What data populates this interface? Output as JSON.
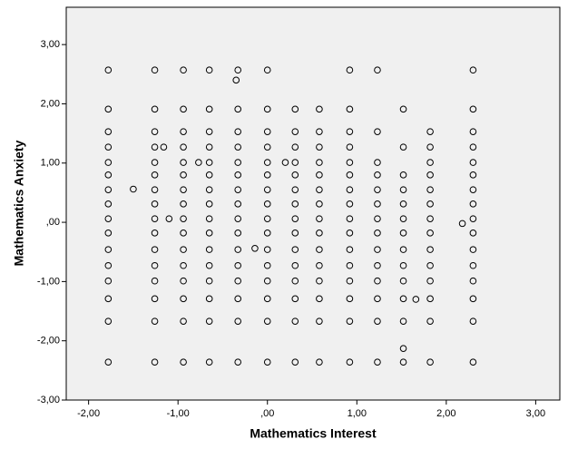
{
  "chart_data": {
    "type": "scatter",
    "x_label": "Mathematics Interest",
    "y_label": "Mathematics Anxiety",
    "xlim": [
      -2.25,
      3.27
    ],
    "ylim": [
      -3,
      3.63
    ],
    "xticks": [
      {
        "value": -2,
        "label": "-2,00"
      },
      {
        "value": -1,
        "label": "-1,00"
      },
      {
        "value": 0,
        "label": ",00"
      },
      {
        "value": 1,
        "label": "1,00"
      },
      {
        "value": 2,
        "label": "2,00"
      },
      {
        "value": 3,
        "label": "3,00"
      }
    ],
    "yticks": [
      {
        "value": -3,
        "label": "-3,00"
      },
      {
        "value": -2,
        "label": "-2,00"
      },
      {
        "value": -1,
        "label": "-1,00"
      },
      {
        "value": 0,
        "label": ",00"
      },
      {
        "value": 1,
        "label": "1,00"
      },
      {
        "value": 2,
        "label": "2,00"
      },
      {
        "value": 3,
        "label": "3,00"
      }
    ],
    "color": "#000000",
    "background": "#f0f0f0",
    "x": [
      -1.78,
      -1.78,
      -1.78,
      -1.78,
      -1.78,
      -1.78,
      -1.78,
      -1.78,
      -1.78,
      -1.78,
      -1.78,
      -1.78,
      -1.78,
      -1.78,
      -1.78,
      -1.78,
      -1.26,
      -1.26,
      -1.26,
      -1.26,
      -1.26,
      -1.26,
      -1.26,
      -1.26,
      -1.26,
      -1.26,
      -1.26,
      -1.26,
      -1.26,
      -1.26,
      -1.26,
      -1.26,
      -0.94,
      -0.94,
      -0.94,
      -0.94,
      -0.94,
      -0.94,
      -0.94,
      -0.94,
      -0.94,
      -0.94,
      -0.94,
      -0.94,
      -0.94,
      -0.94,
      -0.94,
      -0.94,
      -0.65,
      -0.65,
      -0.65,
      -0.65,
      -0.65,
      -0.65,
      -0.65,
      -0.65,
      -0.65,
      -0.65,
      -0.65,
      -0.65,
      -0.65,
      -0.65,
      -0.65,
      -0.65,
      -0.33,
      -0.33,
      -0.33,
      -0.33,
      -0.33,
      -0.33,
      -0.33,
      -0.33,
      -0.33,
      -0.33,
      -0.33,
      -0.33,
      -0.33,
      -0.33,
      -0.33,
      -0.33,
      0,
      0,
      0,
      0,
      0,
      0,
      0,
      0,
      0,
      0,
      0,
      0,
      0,
      0,
      0,
      0,
      0.31,
      0.31,
      0.31,
      0.31,
      0.31,
      0.31,
      0.31,
      0.31,
      0.31,
      0.31,
      0.31,
      0.31,
      0.31,
      0.31,
      0.31,
      0.58,
      0.58,
      0.58,
      0.58,
      0.58,
      0.58,
      0.58,
      0.58,
      0.58,
      0.58,
      0.58,
      0.58,
      0.58,
      0.58,
      0.58,
      0.92,
      0.92,
      0.92,
      0.92,
      0.92,
      0.92,
      0.92,
      0.92,
      0.92,
      0.92,
      0.92,
      0.92,
      0.92,
      0.92,
      0.92,
      0.92,
      1.23,
      1.23,
      1.23,
      1.23,
      1.23,
      1.23,
      1.23,
      1.23,
      1.23,
      1.23,
      1.23,
      1.23,
      1.23,
      1.23,
      1.52,
      1.52,
      1.52,
      1.52,
      1.52,
      1.52,
      1.52,
      1.52,
      1.52,
      1.52,
      1.52,
      1.52,
      1.52,
      1.82,
      1.82,
      1.82,
      1.82,
      1.82,
      1.82,
      1.82,
      1.82,
      1.82,
      1.82,
      1.82,
      1.82,
      1.82,
      1.82,
      2.3,
      2.3,
      2.3,
      2.3,
      2.3,
      2.3,
      2.3,
      2.3,
      2.3,
      2.3,
      2.3,
      2.3,
      2.3,
      2.3,
      2.3,
      2.3,
      -1.5,
      -1.16,
      -1.1,
      -0.77,
      2.18,
      1.66,
      1.52,
      -0.35,
      0.2,
      -0.14
    ],
    "y": [
      2.57,
      1.91,
      1.53,
      1.27,
      1.01,
      0.8,
      0.55,
      0.31,
      0.06,
      -0.18,
      -0.46,
      -0.73,
      -0.99,
      -1.29,
      -1.67,
      -2.36,
      2.57,
      1.91,
      1.53,
      1.27,
      1.01,
      0.8,
      0.55,
      0.31,
      0.06,
      -0.18,
      -0.46,
      -0.73,
      -0.99,
      -1.29,
      -1.67,
      -2.36,
      2.57,
      1.91,
      1.53,
      1.27,
      1.01,
      0.8,
      0.55,
      0.31,
      0.06,
      -0.18,
      -0.46,
      -0.73,
      -0.99,
      -1.29,
      -1.67,
      -2.36,
      2.57,
      1.91,
      1.53,
      1.27,
      1.01,
      0.8,
      0.55,
      0.31,
      0.06,
      -0.18,
      -0.46,
      -0.73,
      -0.99,
      -1.29,
      -1.67,
      -2.36,
      2.57,
      1.91,
      1.53,
      1.27,
      1.01,
      0.8,
      0.55,
      0.31,
      0.06,
      -0.18,
      -0.46,
      -0.73,
      -0.99,
      -1.29,
      -1.67,
      -2.36,
      2.57,
      1.91,
      1.53,
      1.27,
      1.01,
      0.8,
      0.55,
      0.31,
      0.06,
      -0.18,
      -0.46,
      -0.73,
      -0.99,
      -1.29,
      -1.67,
      -2.36,
      1.91,
      1.53,
      1.27,
      1.01,
      0.8,
      0.55,
      0.31,
      0.06,
      -0.18,
      -0.46,
      -0.73,
      -0.99,
      -1.29,
      -1.67,
      -2.36,
      1.91,
      1.53,
      1.27,
      1.01,
      0.8,
      0.55,
      0.31,
      0.06,
      -0.18,
      -0.46,
      -0.73,
      -0.99,
      -1.29,
      -1.67,
      -2.36,
      2.57,
      1.91,
      1.53,
      1.27,
      1.01,
      0.8,
      0.55,
      0.31,
      0.06,
      -0.18,
      -0.46,
      -0.73,
      -0.99,
      -1.29,
      -1.67,
      -2.36,
      2.57,
      1.53,
      1.01,
      0.8,
      0.55,
      0.31,
      0.06,
      -0.18,
      -0.46,
      -0.73,
      -0.99,
      -1.29,
      -1.67,
      -2.36,
      1.91,
      1.27,
      0.8,
      0.55,
      0.31,
      0.06,
      -0.18,
      -0.46,
      -0.73,
      -0.99,
      -1.29,
      -1.67,
      -2.36,
      1.53,
      1.27,
      1.01,
      0.8,
      0.55,
      0.31,
      0.06,
      -0.18,
      -0.46,
      -0.73,
      -0.99,
      -1.29,
      -1.67,
      -2.36,
      2.57,
      1.91,
      1.53,
      1.27,
      1.01,
      0.8,
      0.55,
      0.31,
      0.06,
      -0.18,
      -0.46,
      -0.73,
      -0.99,
      -1.29,
      -1.67,
      -2.36,
      0.56,
      1.27,
      0.06,
      1.01,
      -0.02,
      -1.3,
      -2.13,
      2.4,
      1.01,
      -0.44
    ]
  }
}
